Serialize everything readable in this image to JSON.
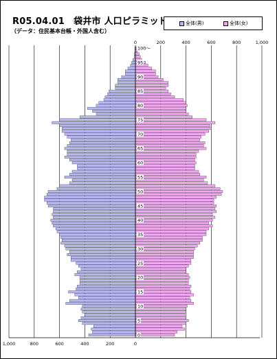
{
  "header": {
    "title": "R05.04.01　袋井市 人口ピラミッド",
    "subtitle": "（データ：住民基本台帳・外国人含む）"
  },
  "legend": {
    "male_label": "全体(男)",
    "female_label": "全体(女)"
  },
  "colors": {
    "male_fill": "#b8b8f0",
    "female_fill": "#f0a8f0",
    "bar_stroke": "#333333",
    "grid": "#000000"
  },
  "chart_data": {
    "type": "bar",
    "orientation": "horizontal-pyramid",
    "title": "R05.04.01　袋井市 人口ピラミッド",
    "subtitle": "（データ：住民基本台帳・外国人含む）",
    "xlim": [
      0,
      1000
    ],
    "top_tick_labels": [
      "0",
      "200",
      "400",
      "600",
      "800",
      "1,000"
    ],
    "bottom_tick_labels": [
      "1,000",
      "800",
      "600",
      "400",
      "200",
      "0"
    ],
    "age_tick_labels": [
      "0",
      "5",
      "10",
      "15",
      "20",
      "25",
      "30",
      "35",
      "40",
      "45",
      "50",
      "55",
      "60",
      "65",
      "70",
      "75",
      "80",
      "85",
      "90",
      "95",
      "100～"
    ],
    "ages": [
      0,
      1,
      2,
      3,
      4,
      5,
      6,
      7,
      8,
      9,
      10,
      11,
      12,
      13,
      14,
      15,
      16,
      17,
      18,
      19,
      20,
      21,
      22,
      23,
      24,
      25,
      26,
      27,
      28,
      29,
      30,
      31,
      32,
      33,
      34,
      35,
      36,
      37,
      38,
      39,
      40,
      41,
      42,
      43,
      44,
      45,
      46,
      47,
      48,
      49,
      50,
      51,
      52,
      53,
      54,
      55,
      56,
      57,
      58,
      59,
      60,
      61,
      62,
      63,
      64,
      65,
      66,
      67,
      68,
      69,
      70,
      71,
      72,
      73,
      74,
      75,
      76,
      77,
      78,
      79,
      80,
      81,
      82,
      83,
      84,
      85,
      86,
      87,
      88,
      89,
      90,
      91,
      92,
      93,
      94,
      95,
      96,
      97,
      98,
      99,
      100
    ],
    "series": [
      {
        "name": "全体(男)",
        "values": [
          370,
          340,
          350,
          330,
          420,
          450,
          430,
          400,
          420,
          430,
          420,
          550,
          520,
          450,
          480,
          530,
          470,
          460,
          440,
          440,
          440,
          480,
          460,
          430,
          450,
          470,
          510,
          510,
          540,
          520,
          550,
          560,
          590,
          580,
          590,
          600,
          620,
          630,
          650,
          660,
          670,
          650,
          660,
          650,
          650,
          690,
          700,
          720,
          720,
          700,
          690,
          620,
          600,
          520,
          500,
          560,
          520,
          500,
          460,
          460,
          500,
          520,
          560,
          540,
          540,
          560,
          540,
          520,
          510,
          540,
          560,
          580,
          580,
          600,
          660,
          600,
          440,
          310,
          340,
          380,
          310,
          290,
          250,
          240,
          220,
          210,
          160,
          160,
          140,
          140,
          110,
          80,
          80,
          60,
          40,
          30,
          20,
          10,
          10,
          5,
          5
        ]
      },
      {
        "name": "全体(女)",
        "values": [
          310,
          330,
          390,
          370,
          400,
          420,
          400,
          390,
          400,
          400,
          410,
          460,
          440,
          430,
          460,
          440,
          430,
          440,
          420,
          420,
          430,
          420,
          400,
          400,
          420,
          440,
          440,
          460,
          460,
          460,
          470,
          490,
          510,
          530,
          530,
          560,
          560,
          580,
          610,
          580,
          610,
          630,
          610,
          640,
          630,
          640,
          620,
          620,
          640,
          680,
          690,
          670,
          630,
          570,
          540,
          560,
          510,
          500,
          470,
          470,
          480,
          470,
          480,
          480,
          500,
          560,
          540,
          550,
          510,
          520,
          550,
          580,
          600,
          590,
          630,
          560,
          450,
          420,
          400,
          400,
          410,
          400,
          380,
          310,
          280,
          260,
          240,
          260,
          260,
          220,
          180,
          160,
          160,
          130,
          100,
          80,
          50,
          40,
          30,
          15,
          20
        ]
      }
    ]
  }
}
